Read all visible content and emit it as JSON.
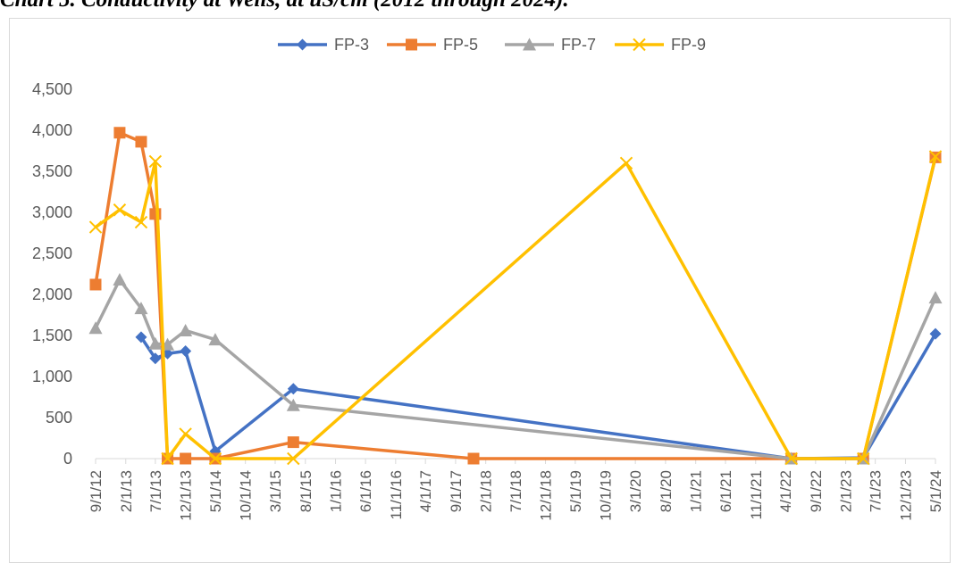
{
  "title": "Chart 5. Conductivity at Wells, at uS/cm (2012 through 2024).",
  "chart_data": {
    "type": "line",
    "title": "Chart 5. Conductivity at Wells, at uS/cm (2012 through 2024).",
    "xlabel": "",
    "ylabel": "",
    "ylim": [
      0,
      4500
    ],
    "xlim": [
      "9/1/12",
      "5/1/24"
    ],
    "grid": false,
    "legend": "top-center",
    "x_ticks": [
      "9/1/12",
      "2/1/13",
      "7/1/13",
      "12/1/13",
      "5/1/14",
      "10/1/14",
      "3/1/15",
      "8/1/15",
      "1/1/16",
      "6/1/16",
      "11/1/16",
      "4/1/17",
      "9/1/17",
      "2/1/18",
      "7/1/18",
      "12/1/18",
      "5/1/19",
      "10/1/19",
      "3/1/20",
      "8/1/20",
      "1/1/21",
      "6/1/21",
      "11/1/21",
      "4/1/22",
      "9/1/22",
      "2/1/23",
      "7/1/23",
      "12/1/23",
      "5/1/24"
    ],
    "y_ticks": [
      "0",
      "500",
      "1,000",
      "1,500",
      "2,000",
      "2,500",
      "3,000",
      "3,500",
      "4,000",
      "4,500"
    ],
    "series": [
      {
        "name": "FP-3",
        "color": "#4472C4",
        "marker": "diamond",
        "points": [
          [
            "4/20/13",
            1480
          ],
          [
            "7/1/13",
            1220
          ],
          [
            "9/1/13",
            1280
          ],
          [
            "12/1/13",
            1310
          ],
          [
            "5/1/14",
            90
          ],
          [
            "6/1/15",
            850
          ],
          [
            "5/1/22",
            0
          ],
          [
            "5/1/23",
            10
          ],
          [
            "5/1/24",
            1520
          ]
        ]
      },
      {
        "name": "FP-5",
        "color": "#ED7D31",
        "marker": "square",
        "points": [
          [
            "9/1/12",
            2120
          ],
          [
            "1/1/13",
            3970
          ],
          [
            "4/20/13",
            3860
          ],
          [
            "7/1/13",
            2980
          ],
          [
            "9/1/13",
            0
          ],
          [
            "12/1/13",
            0
          ],
          [
            "5/1/14",
            0
          ],
          [
            "6/1/15",
            200
          ],
          [
            "12/1/17",
            0
          ],
          [
            "5/1/22",
            0
          ],
          [
            "5/1/23",
            0
          ],
          [
            "5/1/24",
            3670
          ]
        ]
      },
      {
        "name": "FP-7",
        "color": "#A5A5A5",
        "marker": "triangle",
        "points": [
          [
            "9/1/12",
            1590
          ],
          [
            "1/1/13",
            2180
          ],
          [
            "4/20/13",
            1830
          ],
          [
            "7/1/13",
            1400
          ],
          [
            "9/1/13",
            1390
          ],
          [
            "12/1/13",
            1560
          ],
          [
            "5/1/14",
            1450
          ],
          [
            "6/1/15",
            650
          ],
          [
            "5/1/22",
            0
          ],
          [
            "5/1/23",
            0
          ],
          [
            "5/1/24",
            1960
          ]
        ]
      },
      {
        "name": "FP-9",
        "color": "#FFC000",
        "marker": "x",
        "points": [
          [
            "9/1/12",
            2820
          ],
          [
            "1/1/13",
            3030
          ],
          [
            "4/20/13",
            2880
          ],
          [
            "7/1/13",
            3620
          ],
          [
            "9/1/13",
            0
          ],
          [
            "12/1/13",
            300
          ],
          [
            "5/1/14",
            0
          ],
          [
            "6/1/15",
            0
          ],
          [
            "1/15/20",
            3600
          ],
          [
            "5/1/22",
            0
          ],
          [
            "5/1/23",
            0
          ],
          [
            "5/1/24",
            3680
          ]
        ]
      }
    ]
  }
}
